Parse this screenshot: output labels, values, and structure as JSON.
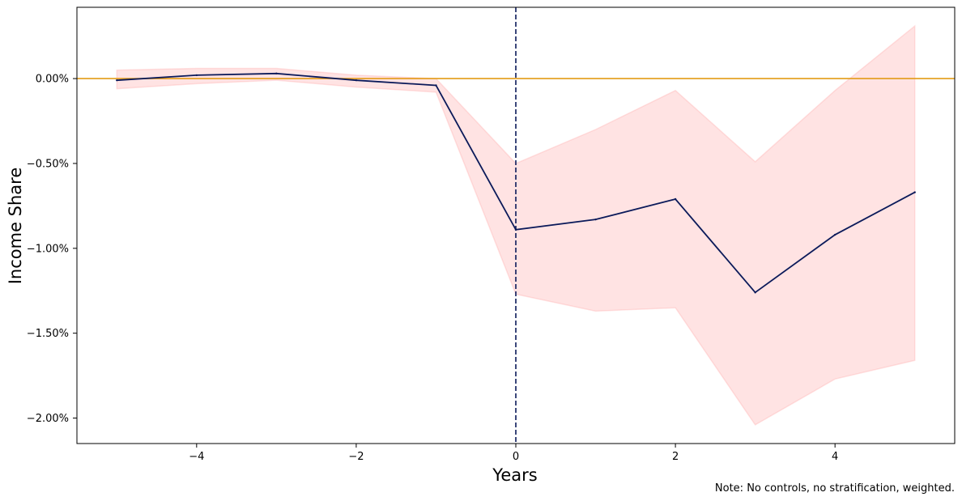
{
  "chart_data": {
    "type": "line",
    "title": "",
    "xlabel": "Years",
    "ylabel": "Income Share",
    "note": "Note: No controls, no stratification, weighted.",
    "xlim": [
      -5.5,
      5.5
    ],
    "ylim": [
      -0.0215,
      0.0042
    ],
    "x_ticks": [
      -4,
      -2,
      0,
      2,
      4
    ],
    "x_tick_labels": [
      "−4",
      "−2",
      "0",
      "2",
      "4"
    ],
    "y_ticks": [
      0.0,
      -0.005,
      -0.01,
      -0.015,
      -0.02
    ],
    "y_tick_labels": [
      "0.00%",
      "−0.50%",
      "−1.00%",
      "−1.50%",
      "−2.00%"
    ],
    "grid": false,
    "x": [
      -5,
      -4,
      -3,
      -2,
      -1,
      0,
      1,
      2,
      3,
      4,
      5
    ],
    "series": [
      {
        "values": [
          -0.0001,
          0.0002,
          0.0003,
          -0.0001,
          -0.0004,
          -0.0089,
          -0.0083,
          -0.0071,
          -0.0126,
          -0.0092,
          -0.0067
        ],
        "color": "#0b1a5a"
      }
    ],
    "confidence_band": {
      "lower": [
        -0.0006,
        -0.0003,
        -0.0001,
        -0.0005,
        -0.0008,
        -0.0127,
        -0.0137,
        -0.0135,
        -0.0204,
        -0.0177,
        -0.0166
      ],
      "upper": [
        0.0005,
        0.0006,
        0.0006,
        0.0002,
        0.0,
        -0.005,
        -0.003,
        -0.0007,
        -0.0049,
        -0.0007,
        0.0031
      ],
      "color": "#ff9999",
      "opacity": 0.27
    },
    "reference_lines": [
      {
        "orientation": "horizontal",
        "value": 0.0,
        "color": "#e39b17",
        "style": "solid"
      },
      {
        "orientation": "vertical",
        "value": 0,
        "color": "#0b1a5a",
        "style": "dashed"
      }
    ]
  }
}
